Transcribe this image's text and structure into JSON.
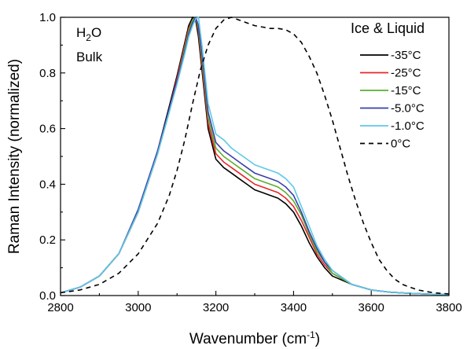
{
  "chart_data": {
    "type": "line",
    "xlabel": "Wavenumber (cm",
    "xlabel_sup": "-1",
    "xlabel_end": ")",
    "ylabel": "Raman Intensity (normalized)",
    "xlim": [
      2800,
      3800
    ],
    "ylim": [
      0,
      1.0
    ],
    "x_ticks": [
      "2800",
      "3000",
      "3200",
      "3400",
      "3600",
      "3800"
    ],
    "y_ticks": [
      "0.0",
      "0.2",
      "0.4",
      "0.6",
      "0.8",
      "1.0"
    ],
    "annotation": {
      "line1_main": "H",
      "line1_sub": "2",
      "line1_end": "O",
      "line2": "Bulk"
    },
    "legend_title": "Ice & Liquid",
    "legend_position": "top-right",
    "series": [
      {
        "name": "-35°C",
        "color": "#000000",
        "dash": false,
        "x": [
          2800,
          2850,
          2900,
          2950,
          3000,
          3050,
          3080,
          3100,
          3120,
          3130,
          3140,
          3148,
          3155,
          3165,
          3180,
          3200,
          3220,
          3240,
          3260,
          3280,
          3300,
          3320,
          3340,
          3360,
          3380,
          3400,
          3420,
          3440,
          3460,
          3480,
          3500,
          3550,
          3600,
          3650,
          3700,
          3750,
          3800
        ],
        "y": [
          0.01,
          0.03,
          0.07,
          0.15,
          0.3,
          0.52,
          0.68,
          0.79,
          0.91,
          0.97,
          1.0,
          0.99,
          0.93,
          0.8,
          0.6,
          0.49,
          0.46,
          0.44,
          0.42,
          0.4,
          0.38,
          0.37,
          0.36,
          0.35,
          0.33,
          0.3,
          0.25,
          0.19,
          0.14,
          0.1,
          0.07,
          0.04,
          0.02,
          0.012,
          0.008,
          0.005,
          0.004
        ]
      },
      {
        "name": "-25°C",
        "color": "#e8252a",
        "dash": false,
        "x": [
          2800,
          2850,
          2900,
          2950,
          3000,
          3050,
          3080,
          3100,
          3120,
          3130,
          3140,
          3148,
          3155,
          3165,
          3180,
          3200,
          3220,
          3240,
          3260,
          3280,
          3300,
          3320,
          3340,
          3360,
          3380,
          3400,
          3420,
          3440,
          3460,
          3480,
          3500,
          3550,
          3600,
          3650,
          3700,
          3750,
          3800
        ],
        "y": [
          0.01,
          0.03,
          0.07,
          0.15,
          0.3,
          0.51,
          0.67,
          0.78,
          0.9,
          0.96,
          0.99,
          1.0,
          0.95,
          0.82,
          0.62,
          0.51,
          0.48,
          0.46,
          0.44,
          0.42,
          0.4,
          0.39,
          0.38,
          0.37,
          0.35,
          0.32,
          0.27,
          0.21,
          0.15,
          0.11,
          0.08,
          0.04,
          0.02,
          0.012,
          0.008,
          0.005,
          0.004
        ]
      },
      {
        "name": "-15°C",
        "color": "#5aae2e",
        "dash": false,
        "x": [
          2800,
          2850,
          2900,
          2950,
          3000,
          3050,
          3080,
          3100,
          3120,
          3130,
          3140,
          3148,
          3155,
          3165,
          3180,
          3200,
          3220,
          3240,
          3260,
          3280,
          3300,
          3320,
          3340,
          3360,
          3380,
          3400,
          3420,
          3440,
          3460,
          3480,
          3500,
          3550,
          3600,
          3650,
          3700,
          3750,
          3800
        ],
        "y": [
          0.01,
          0.03,
          0.07,
          0.15,
          0.3,
          0.51,
          0.66,
          0.77,
          0.89,
          0.95,
          0.99,
          1.0,
          0.96,
          0.84,
          0.64,
          0.53,
          0.5,
          0.48,
          0.46,
          0.44,
          0.42,
          0.41,
          0.4,
          0.39,
          0.37,
          0.34,
          0.29,
          0.22,
          0.16,
          0.12,
          0.08,
          0.04,
          0.02,
          0.012,
          0.008,
          0.005,
          0.004
        ]
      },
      {
        "name": "-5.0°C",
        "color": "#3b3fa8",
        "dash": false,
        "x": [
          2800,
          2850,
          2900,
          2950,
          3000,
          3050,
          3080,
          3100,
          3120,
          3130,
          3140,
          3148,
          3155,
          3165,
          3180,
          3200,
          3220,
          3240,
          3260,
          3280,
          3300,
          3320,
          3340,
          3360,
          3380,
          3400,
          3420,
          3440,
          3460,
          3480,
          3500,
          3550,
          3600,
          3650,
          3700,
          3750,
          3800
        ],
        "y": [
          0.01,
          0.03,
          0.07,
          0.15,
          0.31,
          0.52,
          0.67,
          0.77,
          0.88,
          0.94,
          0.98,
          1.0,
          0.97,
          0.86,
          0.66,
          0.55,
          0.52,
          0.5,
          0.48,
          0.46,
          0.44,
          0.43,
          0.42,
          0.41,
          0.39,
          0.36,
          0.3,
          0.23,
          0.17,
          0.12,
          0.09,
          0.04,
          0.02,
          0.012,
          0.008,
          0.005,
          0.004
        ]
      },
      {
        "name": "-1.0°C",
        "color": "#5ec8e8",
        "dash": false,
        "x": [
          2800,
          2850,
          2900,
          2950,
          3000,
          3050,
          3080,
          3100,
          3120,
          3130,
          3140,
          3148,
          3155,
          3165,
          3180,
          3200,
          3220,
          3240,
          3260,
          3280,
          3300,
          3320,
          3340,
          3360,
          3380,
          3400,
          3420,
          3440,
          3460,
          3480,
          3500,
          3550,
          3600,
          3650,
          3700,
          3750,
          3800
        ],
        "y": [
          0.01,
          0.03,
          0.07,
          0.15,
          0.3,
          0.51,
          0.66,
          0.76,
          0.87,
          0.93,
          0.97,
          0.995,
          1.0,
          0.89,
          0.69,
          0.58,
          0.56,
          0.53,
          0.51,
          0.49,
          0.47,
          0.46,
          0.45,
          0.44,
          0.42,
          0.39,
          0.32,
          0.25,
          0.18,
          0.13,
          0.09,
          0.04,
          0.02,
          0.012,
          0.008,
          0.005,
          0.004
        ]
      },
      {
        "name": "0°C",
        "color": "#000000",
        "dash": true,
        "x": [
          2800,
          2850,
          2900,
          2950,
          3000,
          3050,
          3080,
          3100,
          3120,
          3140,
          3160,
          3180,
          3200,
          3220,
          3240,
          3260,
          3280,
          3300,
          3320,
          3340,
          3360,
          3380,
          3400,
          3420,
          3440,
          3460,
          3480,
          3500,
          3520,
          3540,
          3560,
          3580,
          3600,
          3620,
          3640,
          3660,
          3680,
          3700,
          3720,
          3740,
          3760,
          3780,
          3800
        ],
        "y": [
          0.01,
          0.02,
          0.04,
          0.08,
          0.15,
          0.26,
          0.36,
          0.45,
          0.56,
          0.69,
          0.81,
          0.9,
          0.96,
          0.99,
          1.0,
          0.99,
          0.98,
          0.97,
          0.965,
          0.96,
          0.96,
          0.955,
          0.94,
          0.91,
          0.86,
          0.8,
          0.72,
          0.63,
          0.53,
          0.43,
          0.34,
          0.26,
          0.19,
          0.13,
          0.09,
          0.06,
          0.04,
          0.03,
          0.02,
          0.015,
          0.01,
          0.008,
          0.006
        ]
      }
    ]
  }
}
